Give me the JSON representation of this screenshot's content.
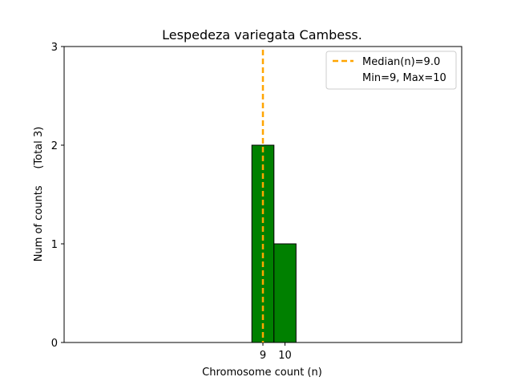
{
  "chart_data": {
    "type": "bar",
    "title": "Lespedeza variegata Cambess.",
    "xlabel": "Chromosome count (n)",
    "ylabel": "Num of counts     (Total 3)",
    "xlim": [
      0,
      18
    ],
    "ylim": [
      0,
      3
    ],
    "xticks": [
      9,
      10
    ],
    "yticks": [
      0,
      1,
      2,
      3
    ],
    "bars": [
      {
        "x": 9,
        "value": 2
      },
      {
        "x": 10,
        "value": 1
      }
    ],
    "bar_color": "#008000",
    "bar_edge_color": "#000000",
    "median": 9.0,
    "median_color": "#ffa500",
    "legend": {
      "position": "top-right",
      "entries": [
        "Median(n)=9.0",
        "Min=9, Max=10"
      ]
    },
    "grid": false
  }
}
